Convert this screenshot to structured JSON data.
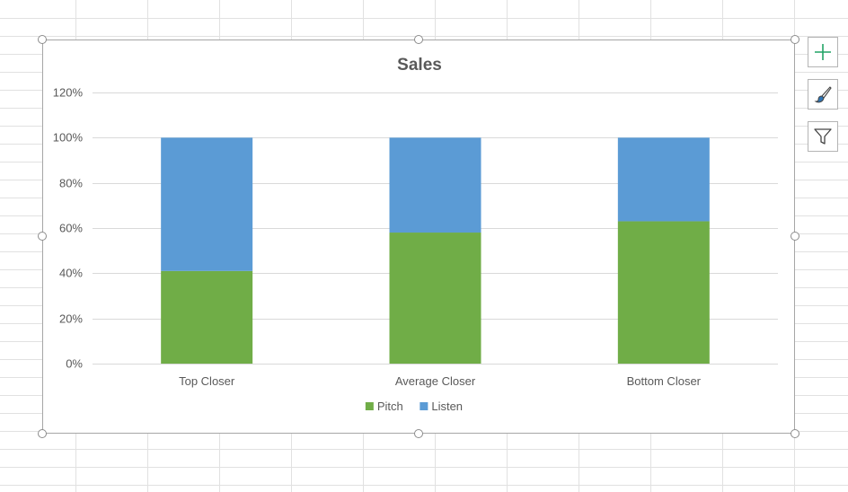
{
  "chart_data": {
    "type": "bar",
    "stacked": true,
    "title": "Sales",
    "categories": [
      "Top Closer",
      "Average Closer",
      "Bottom Closer"
    ],
    "series": [
      {
        "name": "Pitch",
        "values": [
          41,
          58,
          63
        ],
        "color": "#70ad47"
      },
      {
        "name": "Listen",
        "values": [
          59,
          42,
          37
        ],
        "color": "#5b9bd5"
      }
    ],
    "ylim": [
      0,
      120
    ],
    "y_ticks": [
      0,
      20,
      40,
      60,
      80,
      100,
      120
    ],
    "y_tick_labels": [
      "0%",
      "20%",
      "40%",
      "60%",
      "80%",
      "100%",
      "120%"
    ],
    "grid": true,
    "legend_position": "bottom"
  },
  "side_buttons": {
    "elements": "plus-icon",
    "styles": "paintbrush-icon",
    "filters": "funnel-icon"
  },
  "colors": {
    "gridline": "#d9d9d9",
    "sheet_grid": "#e1e1e1",
    "title": "#595959",
    "label": "#595959"
  }
}
